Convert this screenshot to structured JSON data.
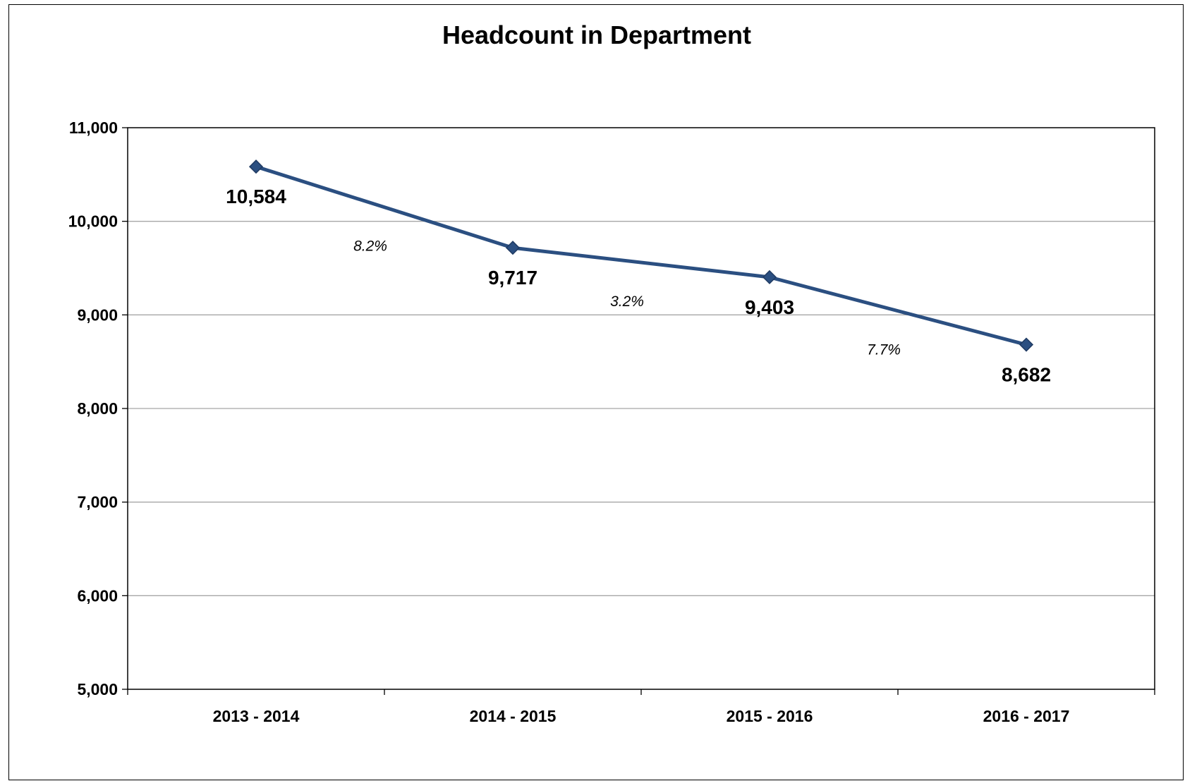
{
  "chart_data": {
    "type": "line",
    "title": "Headcount in Department",
    "xlabel": "",
    "ylabel": "",
    "categories": [
      "2013 - 2014",
      "2014 - 2015",
      "2015 - 2016",
      "2016 - 2017"
    ],
    "series": [
      {
        "values": [
          10584,
          9717,
          9403,
          8682
        ],
        "labels": [
          "10,584",
          "9,717",
          "9,403",
          "8,682"
        ],
        "color": "#2b4f81"
      }
    ],
    "change_labels": [
      "8.2%",
      "3.2%",
      "7.7%"
    ],
    "ylim": [
      5000,
      11000
    ],
    "yticks": [
      5000,
      6000,
      7000,
      8000,
      9000,
      10000,
      11000
    ],
    "ytick_labels": [
      "5,000",
      "6,000",
      "7,000",
      "8,000",
      "9,000",
      "10,000",
      "11,000"
    ],
    "grid": true,
    "legend": "none"
  }
}
